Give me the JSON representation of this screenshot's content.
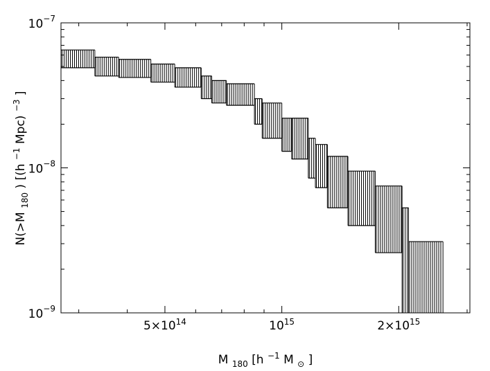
{
  "chart_data": {
    "type": "errorbar-band",
    "xlabel": {
      "main": "M",
      "sub": "180",
      "rest1": " [h",
      "sup": "−1",
      "rest2": "M",
      "sub2": "⊙",
      "rest3": "]"
    },
    "ylabel": {
      "a": "N(>M",
      "asub": "180",
      "b": ")  [(h",
      "bsup": "−1",
      "c": "Mpc)",
      "csup": "−3",
      "d": "]"
    },
    "x_scale": "log",
    "y_scale": "log",
    "xlim": [
      270000000000000.0,
      3050000000000000.0
    ],
    "ylim": [
      1e-09,
      1e-07
    ],
    "x_ticks": [
      {
        "value": 500000000000000.0,
        "base": "5×10",
        "exp": "14"
      },
      {
        "value": 1000000000000000.0,
        "base": "10",
        "exp": "15"
      },
      {
        "value": 2000000000000000.0,
        "base": "2×10",
        "exp": "15"
      }
    ],
    "y_ticks": [
      {
        "value": 1e-09,
        "base": "10",
        "exp": "−9"
      },
      {
        "value": 1e-08,
        "base": "10",
        "exp": "−8"
      },
      {
        "value": 1e-07,
        "base": "10",
        "exp": "−7"
      }
    ],
    "steps": [
      {
        "x_start": 270000000000000.0,
        "x_end": 330000000000000.0,
        "lower": 4.9e-08,
        "upper": 6.5e-08
      },
      {
        "x_start": 330000000000000.0,
        "x_end": 380000000000000.0,
        "lower": 4.3e-08,
        "upper": 5.8e-08
      },
      {
        "x_start": 380000000000000.0,
        "x_end": 460000000000000.0,
        "lower": 4.2e-08,
        "upper": 5.6e-08
      },
      {
        "x_start": 460000000000000.0,
        "x_end": 530000000000000.0,
        "lower": 3.9e-08,
        "upper": 5.2e-08
      },
      {
        "x_start": 530000000000000.0,
        "x_end": 620000000000000.0,
        "lower": 3.6e-08,
        "upper": 4.9e-08
      },
      {
        "x_start": 620000000000000.0,
        "x_end": 660000000000000.0,
        "lower": 3e-08,
        "upper": 4.3e-08
      },
      {
        "x_start": 660000000000000.0,
        "x_end": 720000000000000.0,
        "lower": 2.8e-08,
        "upper": 4e-08
      },
      {
        "x_start": 720000000000000.0,
        "x_end": 850000000000000.0,
        "lower": 2.7e-08,
        "upper": 3.8e-08
      },
      {
        "x_start": 850000000000000.0,
        "x_end": 890000000000000.0,
        "lower": 2e-08,
        "upper": 3e-08
      },
      {
        "x_start": 890000000000000.0,
        "x_end": 1000000000000000.0,
        "lower": 1.6e-08,
        "upper": 2.8e-08
      },
      {
        "x_start": 1000000000000000.0,
        "x_end": 1060000000000000.0,
        "lower": 1.3e-08,
        "upper": 2.2e-08
      },
      {
        "x_start": 1060000000000000.0,
        "x_end": 1170000000000000.0,
        "lower": 1.15e-08,
        "upper": 2.2e-08
      },
      {
        "x_start": 1170000000000000.0,
        "x_end": 1220000000000000.0,
        "lower": 8.5e-09,
        "upper": 1.6e-08
      },
      {
        "x_start": 1220000000000000.0,
        "x_end": 1310000000000000.0,
        "lower": 7.3e-09,
        "upper": 1.45e-08
      },
      {
        "x_start": 1310000000000000.0,
        "x_end": 1480000000000000.0,
        "lower": 5.3e-09,
        "upper": 1.2e-08
      },
      {
        "x_start": 1480000000000000.0,
        "x_end": 1740000000000000.0,
        "lower": 4e-09,
        "upper": 9.5e-09
      },
      {
        "x_start": 1740000000000000.0,
        "x_end": 2040000000000000.0,
        "lower": 2.6e-09,
        "upper": 7.5e-09
      },
      {
        "x_start": 2040000000000000.0,
        "x_end": 2120000000000000.0,
        "lower": 1e-09,
        "upper": 5.3e-09
      },
      {
        "x_start": 2120000000000000.0,
        "x_end": 2600000000000000.0,
        "lower": 1e-09,
        "upper": 3.1e-09
      }
    ],
    "grid": false,
    "colors": {
      "bars": "#000000",
      "background": "#ffffff"
    }
  }
}
